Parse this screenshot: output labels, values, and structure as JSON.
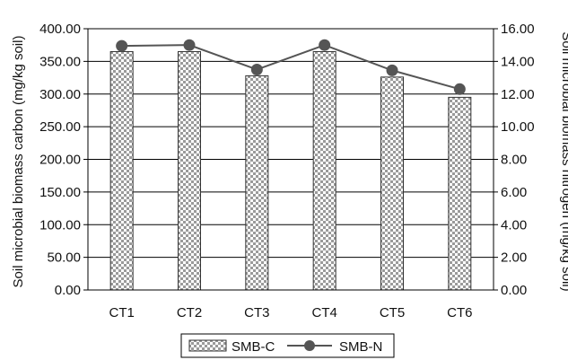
{
  "chart_data": {
    "type": "bar+line",
    "categories": [
      "CT1",
      "CT2",
      "CT3",
      "CT4",
      "CT5",
      "CT6"
    ],
    "series": [
      {
        "name": "SMB-C",
        "type": "bar",
        "axis": "left",
        "values": [
          365,
          365,
          328,
          365,
          326,
          295
        ]
      },
      {
        "name": "SMB-N",
        "type": "line",
        "axis": "right",
        "values": [
          14.95,
          15.0,
          13.5,
          15.0,
          13.45,
          12.3
        ]
      }
    ],
    "ylabel": "Soil microbial biomass carbon (mg/kg soil)",
    "ylabel_right": "Soil microbial biomass nitrogen (mg/kg soil)",
    "ylim": [
      0,
      400
    ],
    "ylim_right": [
      0,
      16
    ],
    "yticks": [
      "0.00",
      "50.00",
      "100.00",
      "150.00",
      "200.00",
      "250.00",
      "300.00",
      "350.00",
      "400.00"
    ],
    "yticks_right": [
      "0.00",
      "2.00",
      "4.00",
      "6.00",
      "8.00",
      "10.00",
      "12.00",
      "14.00",
      "16.00"
    ],
    "grid": true,
    "legend_position": "bottom",
    "colors": {
      "line": "#555555",
      "marker": "#555555",
      "bar_border": "#333333",
      "grid": "#000000"
    }
  }
}
